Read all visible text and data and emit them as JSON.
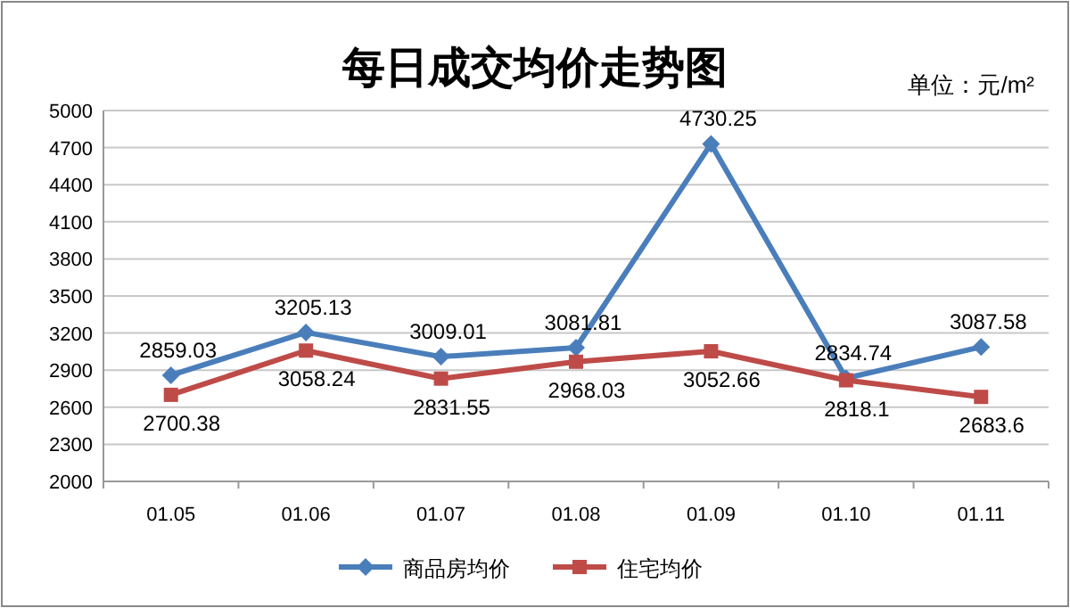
{
  "chart_data": {
    "type": "line",
    "title": "每日成交均价走势图",
    "annotations": [
      "单位：元/m²"
    ],
    "categories": [
      "01.05",
      "01.06",
      "01.07",
      "01.08",
      "01.09",
      "01.10",
      "01.11"
    ],
    "series": [
      {
        "name": "商品房均价",
        "color": "#4a7ebb",
        "marker": "diamond",
        "values": [
          2859.03,
          3205.13,
          3009.01,
          3081.81,
          4730.25,
          2834.74,
          3087.58
        ]
      },
      {
        "name": "住宅均价",
        "color": "#be4b48",
        "marker": "square",
        "values": [
          2700.38,
          3058.24,
          2831.55,
          2968.03,
          3052.66,
          2818.1,
          2683.6
        ]
      }
    ],
    "ylim": [
      2000,
      5000
    ],
    "yticks": [
      2000,
      2300,
      2600,
      2900,
      3200,
      3500,
      3800,
      4100,
      4400,
      4700,
      5000
    ],
    "grid": "y",
    "legend": "bottom",
    "data_labels": true
  }
}
